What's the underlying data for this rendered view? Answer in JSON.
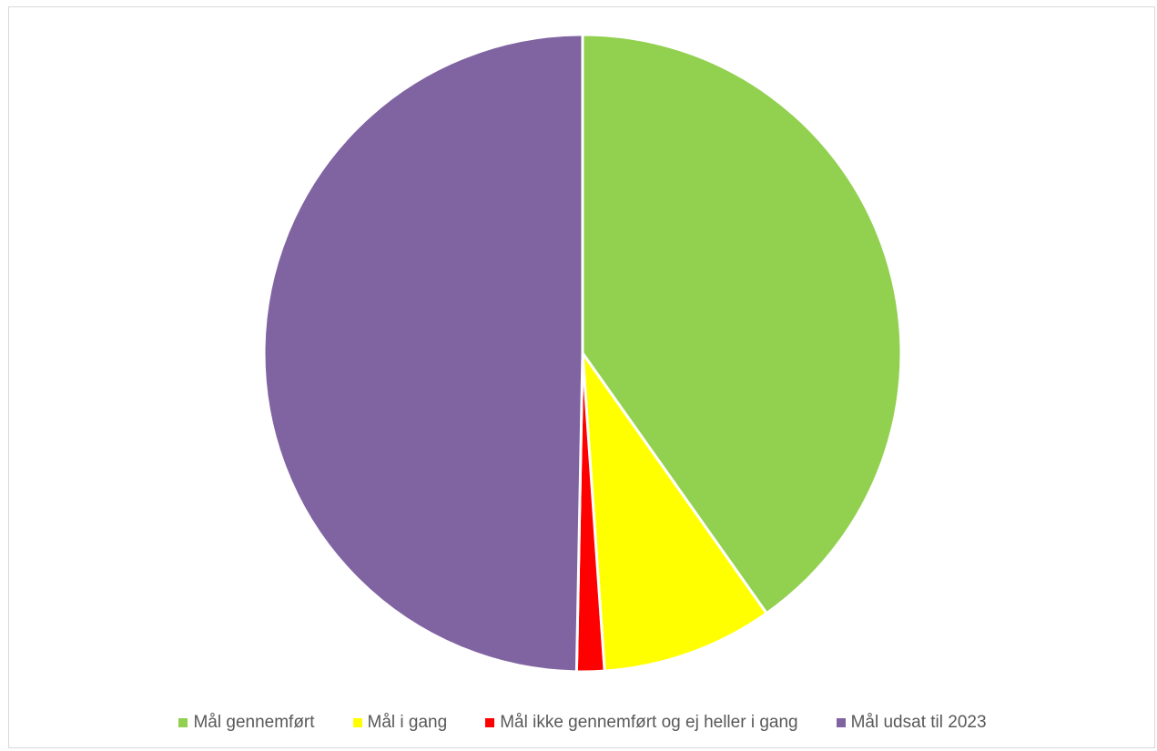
{
  "chart_data": {
    "type": "pie",
    "categories": [
      "Mål gennemført",
      "Mål i gang",
      "Mål ikke gennemført og ej heller i gang",
      "Mål udsat til 2023"
    ],
    "values": [
      40.2,
      8.7,
      1.4,
      49.7
    ],
    "colors": [
      "#92d050",
      "#ffff00",
      "#ff0000",
      "#8064a2"
    ],
    "start_angle_deg": 0,
    "direction": "clockwise",
    "slice_border_color": "#ffffff",
    "legend_position": "bottom"
  }
}
